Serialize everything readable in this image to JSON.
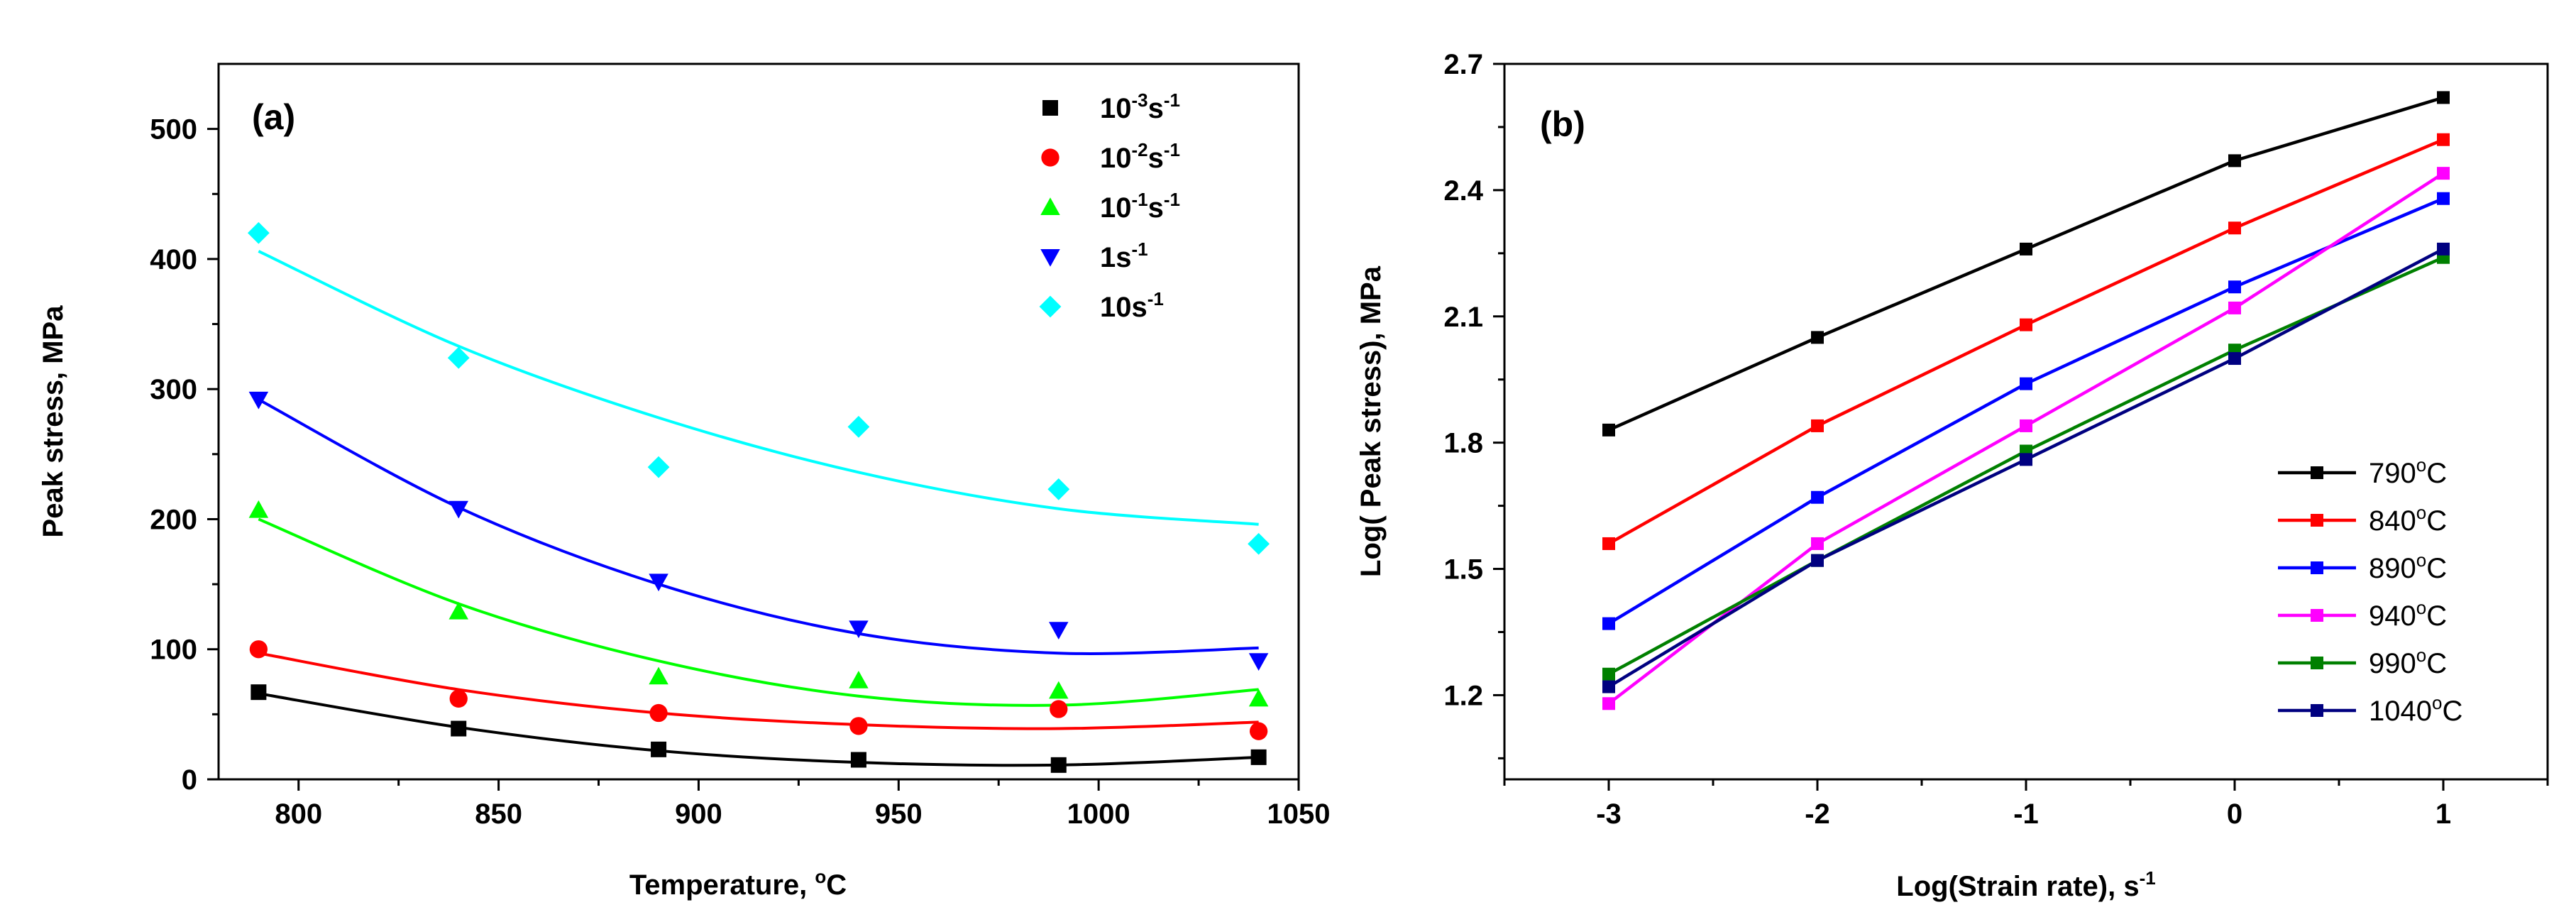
{
  "chart_data": [
    {
      "type": "scatter",
      "panel_label": "(a)",
      "xlabel": "Temperature, °C",
      "xlabel_main": "Temperature, ",
      "xlabel_sup": "o",
      "xlabel_end": "C",
      "ylabel": "Peak stress, MPa",
      "xlim": [
        780,
        1050
      ],
      "ylim": [
        0,
        550
      ],
      "xticks": [
        800,
        850,
        900,
        950,
        1000,
        1050
      ],
      "xtick_labels": [
        "800",
        "850",
        "900",
        "950",
        "1000",
        "1050"
      ],
      "yticks": [
        0,
        100,
        200,
        300,
        400,
        500
      ],
      "ytick_labels": [
        "0",
        "100",
        "200",
        "300",
        "400",
        "500"
      ],
      "x": [
        790,
        840,
        890,
        940,
        990,
        1040
      ],
      "legend_position": "top-right",
      "series": [
        {
          "name": "10^-3 s^-1",
          "base": "10",
          "exp": "-3",
          "unit": "s",
          "unit_exp": "-1",
          "marker": "square",
          "color": "#000000",
          "values": [
            67,
            39,
            23,
            15,
            11,
            17
          ],
          "fit": [
            66,
            40,
            22,
            13,
            11,
            17
          ]
        },
        {
          "name": "10^-2 s^-1",
          "base": "10",
          "exp": "-2",
          "unit": "s",
          "unit_exp": "-1",
          "marker": "circle",
          "color": "#ff0000",
          "values": [
            100,
            62,
            51,
            41,
            54,
            37
          ],
          "fit": [
            97,
            69,
            51,
            42,
            39,
            44
          ]
        },
        {
          "name": "10^-1 s^-1",
          "base": "10",
          "exp": "-1",
          "unit": "s",
          "unit_exp": "-1",
          "marker": "triangle-up",
          "color": "#00ff00",
          "values": [
            207,
            129,
            79,
            76,
            68,
            62
          ],
          "fit": [
            200,
            135,
            91,
            64,
            57,
            69
          ]
        },
        {
          "name": "1 s^-1",
          "base": "1",
          "exp": "",
          "unit": "s",
          "unit_exp": "-1",
          "marker": "triangle-down",
          "color": "#0000ff",
          "values": [
            292,
            208,
            152,
            116,
            115,
            91
          ],
          "fit": [
            292,
            209,
            150,
            112,
            97,
            101
          ]
        },
        {
          "name": "10 s^-1",
          "base": "10",
          "exp": "",
          "unit": "s",
          "unit_exp": "-1",
          "marker": "diamond",
          "color": "#00ffff",
          "values": [
            420,
            324,
            240,
            271,
            223,
            181
          ],
          "fit": [
            406,
            333,
            278,
            236,
            208,
            196
          ]
        }
      ]
    },
    {
      "type": "line",
      "panel_label": "(b)",
      "xlabel": "Log(Strain rate), s^-1",
      "xlabel_main": "Log(Strain rate), s",
      "xlabel_sup": "-1",
      "ylabel": "Log( Peak stress), MPa",
      "xlim": [
        -3.5,
        1.5
      ],
      "ylim": [
        1.0,
        2.7
      ],
      "xticks": [
        -3,
        -2,
        -1,
        0,
        1
      ],
      "xtick_labels": [
        "-3",
        "-2",
        "-1",
        "0",
        "1"
      ],
      "yticks": [
        1.2,
        1.5,
        1.8,
        2.1,
        2.4,
        2.7
      ],
      "ytick_labels": [
        "1.2",
        "1.5",
        "1.8",
        "2.1",
        "2.4",
        "2.7"
      ],
      "x": [
        -3,
        -2,
        -1,
        0,
        1
      ],
      "legend_position": "bottom-right",
      "series": [
        {
          "name": "790°C",
          "temp": "790",
          "sup": "o",
          "unit": "C",
          "color": "#000000",
          "values": [
            1.83,
            2.05,
            2.26,
            2.47,
            2.62
          ]
        },
        {
          "name": "840°C",
          "temp": "840",
          "sup": "o",
          "unit": "C",
          "color": "#ff0000",
          "values": [
            1.56,
            1.84,
            2.08,
            2.31,
            2.52
          ]
        },
        {
          "name": "890°C",
          "temp": "890",
          "sup": "o",
          "unit": "C",
          "color": "#0000ff",
          "values": [
            1.37,
            1.67,
            1.94,
            2.17,
            2.38
          ]
        },
        {
          "name": "940°C",
          "temp": "940",
          "sup": "o",
          "unit": "C",
          "color": "#ff00ff",
          "values": [
            1.18,
            1.56,
            1.84,
            2.12,
            2.44
          ]
        },
        {
          "name": "990°C",
          "temp": "990",
          "sup": "o",
          "unit": "C",
          "color": "#008000",
          "values": [
            1.25,
            1.52,
            1.78,
            2.02,
            2.24
          ]
        },
        {
          "name": "1040°C",
          "temp": "1040",
          "sup": "o",
          "unit": "C",
          "color": "#000080",
          "values": [
            1.22,
            1.52,
            1.76,
            2.0,
            2.26
          ]
        }
      ]
    }
  ]
}
